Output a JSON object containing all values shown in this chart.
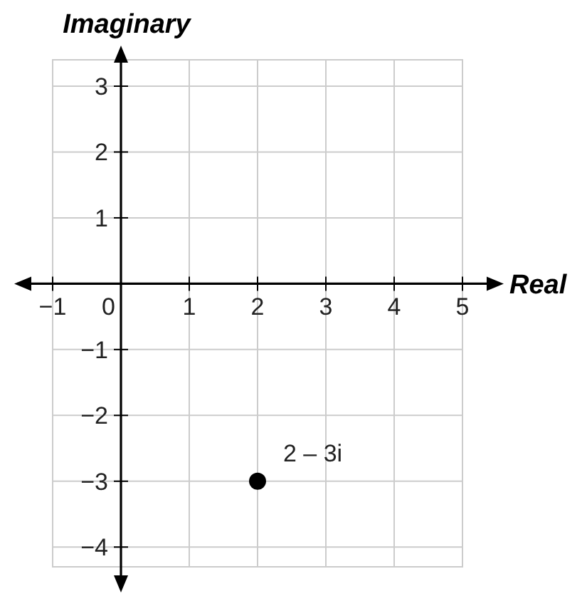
{
  "chart_data": {
    "type": "scatter",
    "xlabel": "Real",
    "ylabel": "Imaginary",
    "x": [
      2
    ],
    "values": [
      -3
    ],
    "color": "#000000",
    "marker": "circle",
    "xlim": [
      -1,
      5
    ],
    "ylim": [
      -4.3,
      3.4
    ],
    "xticks": [
      {
        "value": -1,
        "label": "−1"
      },
      0,
      1,
      2,
      3,
      4,
      5
    ],
    "yticks": [
      {
        "value": -4,
        "label": "−4"
      },
      {
        "value": -3,
        "label": "−3"
      },
      {
        "value": -2,
        "label": "−2"
      },
      {
        "value": -1,
        "label": "−1"
      },
      1,
      2,
      3
    ],
    "grid": true,
    "annotations": [
      {
        "text": "2 – 3i",
        "x": 2,
        "y": -3
      }
    ]
  }
}
